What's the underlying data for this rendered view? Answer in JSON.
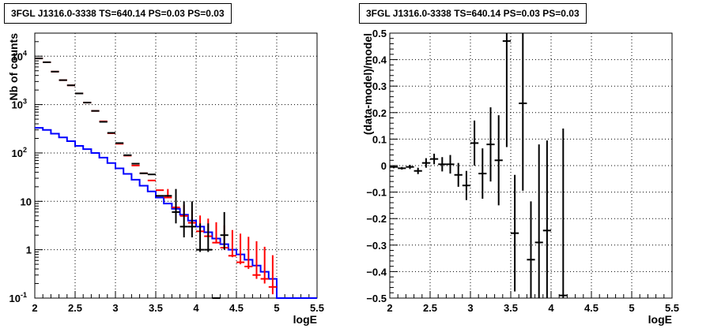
{
  "chart_data": [
    {
      "type": "line",
      "title": "3FGL J1316.0-3338 TS=640.14 PS=0.03 PS=0.03",
      "xlabel": "logE",
      "ylabel": "Nb of counts",
      "xlim": [
        2,
        5.5
      ],
      "ylim": [
        0.1,
        30000
      ],
      "yscale": "log",
      "grid": true,
      "xticks": [
        "2",
        "2.5",
        "3",
        "3.5",
        "4",
        "4.5",
        "5",
        "5.5"
      ],
      "yticks": [
        {
          "value": 0.1,
          "label": "10",
          "exp": "-1"
        },
        {
          "value": 1,
          "label": "1",
          "exp": ""
        },
        {
          "value": 10,
          "label": "10",
          "exp": ""
        },
        {
          "value": 100,
          "label": "10",
          "exp": "2"
        },
        {
          "value": 1000,
          "label": "10",
          "exp": "3"
        },
        {
          "value": 10000,
          "label": "10",
          "exp": "4"
        }
      ],
      "bin_width": 0.1,
      "series": [
        {
          "color": "#0000ff",
          "style": "step",
          "x": [
            2.0,
            2.1,
            2.2,
            2.3,
            2.4,
            2.5,
            2.6,
            2.7,
            2.8,
            2.9,
            3.0,
            3.1,
            3.2,
            3.3,
            3.4,
            3.5,
            3.6,
            3.7,
            3.8,
            3.9,
            4.0,
            4.1,
            4.2,
            4.3,
            4.4,
            4.5,
            4.6,
            4.7,
            4.8,
            4.9,
            5.0,
            5.1,
            5.2,
            5.3,
            5.4
          ],
          "y": [
            330,
            300,
            250,
            210,
            175,
            140,
            120,
            100,
            80,
            62,
            48,
            37,
            28,
            21,
            16,
            12,
            9,
            7,
            5.3,
            4,
            3,
            2.3,
            1.7,
            1.3,
            1,
            0.8,
            0.62,
            0.47,
            0.35,
            0.25,
            0.1,
            0.1,
            0.1,
            0.1,
            0.1
          ]
        },
        {
          "color": "#ff0000",
          "style": "errorbar",
          "x": [
            2.05,
            2.15,
            2.25,
            2.35,
            2.45,
            2.55,
            2.65,
            2.75,
            2.85,
            2.95,
            3.05,
            3.15,
            3.25,
            3.35,
            3.45,
            3.55,
            3.65,
            3.75,
            3.85,
            3.95,
            4.05,
            4.15,
            4.25,
            4.35,
            4.45,
            4.55,
            4.65,
            4.75,
            4.85,
            4.95
          ],
          "y": [
            9000,
            7500,
            4800,
            3200,
            2500,
            1700,
            1100,
            740,
            450,
            255,
            155,
            88,
            55,
            38,
            27,
            17,
            12,
            7.5,
            5,
            3.6,
            2.4,
            1.9,
            1.4,
            1.1,
            0.75,
            0.55,
            0.45,
            0.3,
            0.25,
            0.17
          ],
          "yerr_low": [
            0,
            0,
            0,
            0,
            0,
            0,
            0,
            0,
            0,
            0,
            0,
            0,
            0,
            0,
            0,
            0,
            0.05,
            0.05,
            0.05,
            0.05,
            0.05,
            0.05,
            0.05,
            0.05,
            0.05,
            0.05,
            0.05,
            0.05,
            0.05,
            0.05
          ],
          "yerr_high": [
            0,
            0,
            0,
            0,
            0,
            0,
            0,
            0,
            0,
            0,
            0,
            0,
            0,
            0,
            0,
            0,
            6,
            4,
            3.5,
            3,
            2.7,
            2.5,
            2.3,
            2.1,
            1.8,
            1.6,
            1.4,
            1.2,
            0.9,
            0.6
          ]
        },
        {
          "color": "#000000",
          "style": "errorbar",
          "x": [
            2.05,
            2.15,
            2.25,
            2.35,
            2.45,
            2.55,
            2.65,
            2.75,
            2.85,
            2.95,
            3.05,
            3.15,
            3.25,
            3.35,
            3.45,
            3.55,
            3.65,
            3.75,
            3.85,
            3.95,
            4.05,
            4.15,
            4.25,
            4.35
          ],
          "y": [
            9000,
            7500,
            4800,
            3200,
            2500,
            1700,
            1100,
            740,
            440,
            260,
            160,
            90,
            60,
            38,
            36,
            13,
            13,
            6,
            3,
            3,
            1,
            1,
            0.1,
            2
          ],
          "yerr_low": [
            0,
            0,
            0,
            0,
            0,
            0,
            0,
            0,
            0,
            0,
            0,
            0,
            0,
            0,
            0,
            0,
            0,
            2.5,
            1.2,
            1.2,
            0.1,
            0.1,
            0,
            1
          ],
          "yerr_high": [
            0,
            0,
            0,
            0,
            0,
            0,
            0,
            0,
            0,
            0,
            0,
            0,
            0,
            0,
            0,
            0,
            0,
            12,
            7,
            7,
            2.5,
            2.5,
            0,
            4
          ]
        }
      ]
    },
    {
      "type": "scatter",
      "title": "3FGL J1316.0-3338 TS=640.14 PS=0.03 PS=0.03",
      "xlabel": "logE",
      "ylabel": "(data-model)/model",
      "xlim": [
        2,
        5.5
      ],
      "ylim": [
        -0.5,
        0.5
      ],
      "grid": true,
      "xticks": [
        "2",
        "2.5",
        "3",
        "3.5",
        "4",
        "4.5",
        "5",
        "5.5"
      ],
      "yticks": [
        {
          "value": -0.5,
          "label": "−0.5"
        },
        {
          "value": -0.4,
          "label": "−0.4"
        },
        {
          "value": -0.3,
          "label": "−0.3"
        },
        {
          "value": -0.2,
          "label": "−0.2"
        },
        {
          "value": -0.1,
          "label": "−0.1"
        },
        {
          "value": 0,
          "label": "0"
        },
        {
          "value": 0.1,
          "label": "0.1"
        },
        {
          "value": 0.2,
          "label": "0.2"
        },
        {
          "value": 0.3,
          "label": "0.3"
        },
        {
          "value": 0.4,
          "label": "0.4"
        },
        {
          "value": 0.5,
          "label": "0.5"
        }
      ],
      "bin_width": 0.1,
      "series": [
        {
          "color": "#000000",
          "style": "errorbar",
          "x": [
            2.05,
            2.15,
            2.25,
            2.35,
            2.45,
            2.55,
            2.65,
            2.75,
            2.85,
            2.95,
            3.05,
            3.15,
            3.25,
            3.35,
            3.45,
            3.55,
            3.65,
            3.75,
            3.85,
            3.95,
            4.15
          ],
          "y": [
            -0.005,
            -0.01,
            -0.005,
            -0.02,
            0.01,
            0.025,
            0.005,
            0.005,
            -0.035,
            -0.075,
            0.085,
            -0.03,
            0.08,
            0.02,
            0.47,
            -0.255,
            0.235,
            -0.355,
            -0.29,
            -0.245,
            -0.49
          ],
          "yerr": [
            0.005,
            0.005,
            0.008,
            0.012,
            0.018,
            0.02,
            0.027,
            0.035,
            0.045,
            0.055,
            0.085,
            0.095,
            0.14,
            0.17,
            0.4,
            0.22,
            0.33,
            0.22,
            0.37,
            0.34,
            0.63
          ]
        }
      ]
    }
  ]
}
